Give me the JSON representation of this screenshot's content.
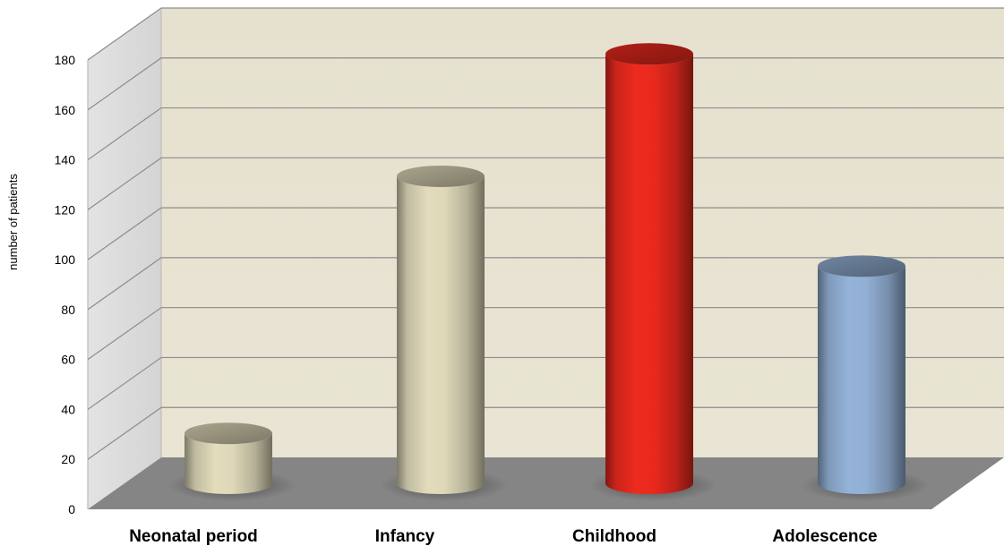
{
  "chart_data": {
    "type": "bar",
    "style": "3d-cylinder",
    "title": "",
    "xlabel": "",
    "ylabel": "number of patients",
    "categories": [
      "Neonatal period",
      "Infancy",
      "Childhood",
      "Adolescence"
    ],
    "values": [
      20,
      123,
      172,
      87
    ],
    "ylim": [
      0,
      180
    ],
    "yticks": [
      0,
      20,
      40,
      60,
      80,
      100,
      120,
      140,
      160,
      180
    ],
    "grid": true,
    "legend": "none",
    "colors": {
      "back_wall": "#e6e1cf",
      "side_wall": "#d4d4d4",
      "floor": "#858585",
      "grid": "#8c8c8c",
      "bars": [
        "#e2dcbc",
        "#e2dcbc",
        "#ee2a1e",
        "#95b3d9"
      ]
    }
  }
}
